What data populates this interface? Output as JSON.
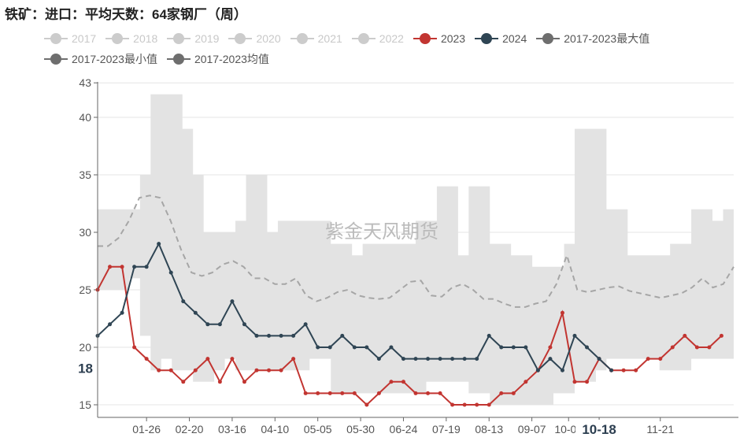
{
  "title": "铁矿：进口：平均天数：64家钢厂（周）",
  "watermark": "紫金天风期货",
  "colors": {
    "band": "#e3e3e3",
    "inactive": "#cccccc",
    "s2023": "#c23531",
    "s2024": "#2f4554",
    "avg": "#a6a6a6",
    "grid": "#e6e6e6",
    "axis": "#666666"
  },
  "legend": [
    {
      "label": "2017",
      "active": false
    },
    {
      "label": "2018",
      "active": false
    },
    {
      "label": "2019",
      "active": false
    },
    {
      "label": "2020",
      "active": false
    },
    {
      "label": "2021",
      "active": false
    },
    {
      "label": "2022",
      "active": false
    },
    {
      "label": "2023",
      "active": true,
      "color": "#c23531"
    },
    {
      "label": "2024",
      "active": true,
      "color": "#2f4554"
    },
    {
      "label": "2017-2023最大值",
      "active": true,
      "color": "#6e6e6e"
    },
    {
      "label": "2017-2023最小值",
      "active": true,
      "color": "#6e6e6e"
    },
    {
      "label": "2017-2023均值",
      "active": true,
      "color": "#6e6e6e"
    }
  ],
  "chart_data": {
    "type": "line",
    "title": "铁矿：进口：平均天数：64家钢厂（周）",
    "y_ticks": [
      15,
      20,
      25,
      30,
      35,
      40,
      43
    ],
    "ylim": [
      14.2,
      43
    ],
    "x_tick_labels": [
      "01-26",
      "02-20",
      "03-16",
      "04-10",
      "05-05",
      "05-30",
      "06-24",
      "07-19",
      "08-13",
      "09-07",
      "10-02",
      "10-18",
      "11-21"
    ],
    "x_tick_weeks": [
      4,
      7.5,
      11,
      14.5,
      18,
      21.5,
      25,
      28.5,
      32,
      35.5,
      38.5,
      41,
      46
    ],
    "highlight": {
      "x_label": "10-18",
      "y_label": "18",
      "y_value": 18.2,
      "week": 41
    },
    "xlim": [
      0,
      52
    ],
    "band_max": [
      32,
      32,
      32,
      32,
      35,
      42,
      42,
      42,
      39,
      35,
      30,
      30,
      30,
      31,
      35,
      35,
      30,
      31,
      31,
      31,
      31,
      31,
      29,
      29,
      28,
      29,
      29,
      29,
      29,
      29,
      31,
      31,
      34,
      34,
      28,
      34,
      34,
      29,
      29,
      28,
      28,
      27,
      27,
      27,
      29,
      39,
      39,
      39,
      32,
      32,
      28,
      28,
      28,
      28,
      29,
      29,
      32,
      32,
      31,
      32
    ],
    "band_min": [
      25,
      25,
      25,
      26,
      21,
      18,
      19,
      18,
      18,
      17,
      17,
      18,
      19,
      18,
      18,
      18,
      18,
      18,
      18,
      18,
      19,
      19,
      16,
      16,
      16,
      16,
      16,
      16,
      16,
      16,
      16,
      17,
      17,
      17,
      17,
      16,
      16,
      15,
      15,
      15,
      15,
      15,
      15,
      16,
      16,
      17,
      17,
      18,
      19,
      19,
      19,
      19,
      19,
      18,
      18,
      18,
      19,
      19,
      19,
      19
    ],
    "series": [
      {
        "name": "2023",
        "values": [
          25,
          27,
          27,
          20,
          19,
          18,
          18,
          17,
          18,
          19,
          17,
          19,
          17,
          18,
          18,
          18,
          19,
          16,
          16,
          16,
          16,
          16,
          15,
          16,
          17,
          17,
          16,
          16,
          16,
          15,
          15,
          15,
          15,
          16,
          16,
          17,
          18,
          20,
          23,
          17,
          17,
          19,
          18,
          18,
          18,
          19,
          19,
          20,
          21,
          20,
          20,
          21
        ]
      },
      {
        "name": "2024",
        "values": [
          21,
          22,
          23,
          27,
          27,
          29,
          26.5,
          24,
          23,
          22,
          22,
          24,
          22,
          21,
          21,
          21,
          21,
          22,
          20,
          20,
          21,
          20,
          20,
          19,
          20,
          19,
          19,
          19,
          19,
          19,
          19,
          19,
          21,
          20,
          20,
          20,
          18,
          19,
          18,
          21,
          20,
          19,
          18
        ]
      },
      {
        "name": "2017-2023均值",
        "values": [
          28.8,
          28.8,
          29.5,
          31,
          33,
          33.2,
          33,
          31,
          28.5,
          26.5,
          26.2,
          26.5,
          27.2,
          27.5,
          27,
          26,
          26,
          25.5,
          25.5,
          26,
          24.5,
          24,
          24.3,
          24.8,
          25,
          24.5,
          24.3,
          24.2,
          24.3,
          25,
          25.7,
          25.8,
          24.5,
          24.4,
          25.2,
          25.5,
          25,
          24.2,
          24.2,
          23.8,
          23.5,
          23.5,
          23.8,
          24,
          25.5,
          28,
          25,
          24.8,
          25,
          25.2,
          25.3,
          24.9,
          24.7,
          24.5,
          24.3,
          24.5,
          24.7,
          25.2,
          26,
          25.2,
          25.5,
          27
        ]
      }
    ],
    "grid": true,
    "legend_position": "top"
  }
}
